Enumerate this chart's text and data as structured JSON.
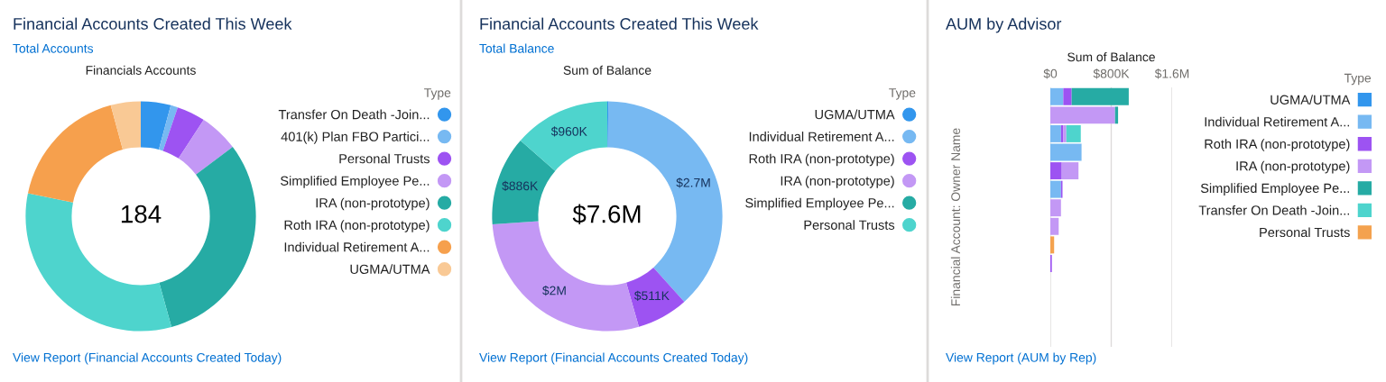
{
  "chart_data": [
    {
      "type": "donut",
      "title": "Financial Accounts Created This Week",
      "subtitle": "Total Accounts",
      "legend_title": "Type",
      "legend": "right",
      "annotations": [
        "Financials Accounts",
        "184",
        "View Report (Financial Accounts Created Today)"
      ],
      "categories": [
        "Transfer On Death -Join...",
        "401(k) Plan FBO Partici...",
        "Personal Trusts",
        "Simplified Employee Pe...",
        "IRA (non-prototype)",
        "Roth IRA (non-prototype)",
        "Individual Retirement A...",
        "UGMA/UTMA"
      ],
      "values": [
        4.2,
        1.0,
        4.0,
        5.5,
        31.0,
        32.5,
        17.6,
        4.2
      ],
      "colors": [
        "#3296ed",
        "#77b9f2",
        "#9d53f2",
        "#c398f5",
        "#26aba4",
        "#4ed4cd",
        "#f6a04d",
        "#f9c995"
      ]
    },
    {
      "type": "donut",
      "title": "Financial Accounts Created This Week",
      "subtitle": "Total Balance",
      "legend_title": "Type",
      "legend": "right",
      "annotations": [
        "Sum of Balance",
        "$7.6M",
        "View Report (Financial Accounts Created Today)"
      ],
      "categories": [
        "UGMA/UTMA",
        "Individual Retirement A...",
        "Roth IRA (non-prototype)",
        "IRA (non-prototype)",
        "Simplified Employee Pe...",
        "Personal Trusts"
      ],
      "values": [
        10000,
        2700000,
        511000,
        2000000,
        886000,
        960000
      ],
      "value_labels": [
        null,
        "$2.7M",
        "$511K",
        "$2M",
        "$886K",
        "$960K"
      ],
      "colors": [
        "#3296ed",
        "#77b9f2",
        "#9d53f2",
        "#c398f5",
        "#26aba4",
        "#4ed4cd"
      ]
    },
    {
      "type": "bar",
      "orientation": "horizontal",
      "stacked": true,
      "title": "AUM by Advisor",
      "xlabel": "Sum of Balance",
      "ylabel": "Financial Account: Owner Name",
      "legend_title": "Type",
      "legend": "right",
      "grid": "x",
      "tick_labels": "x",
      "annotations": [
        "View Report (AUM by Rep)"
      ],
      "categories": [
        null,
        null,
        null,
        null,
        null,
        null,
        null,
        null,
        null,
        null,
        null,
        null,
        null,
        null
      ],
      "xlim": [
        0,
        1600000
      ],
      "xticks": [
        {
          "value": 0,
          "label": "$0"
        },
        {
          "value": 800000,
          "label": "$800K"
        },
        {
          "value": 1600000,
          "label": "$1.6M"
        }
      ],
      "series": [
        {
          "name": "UGMA/UTMA",
          "color": "#3296ed",
          "values": [
            0,
            0,
            0,
            0,
            0,
            0,
            0,
            0,
            0,
            0,
            0,
            0,
            0,
            0
          ]
        },
        {
          "name": "Individual Retirement A...",
          "color": "#77b9f2",
          "values": [
            170000,
            0,
            140000,
            410000,
            0,
            140000,
            0,
            0,
            0,
            0,
            0,
            0,
            0,
            0
          ]
        },
        {
          "name": "Roth IRA (non-prototype)",
          "color": "#9d53f2",
          "values": [
            110000,
            0,
            30000,
            0,
            150000,
            20000,
            0,
            0,
            0,
            20000,
            0,
            0,
            0,
            0
          ]
        },
        {
          "name": "IRA (non-prototype)",
          "color": "#c398f5",
          "values": [
            0,
            850000,
            40000,
            0,
            220000,
            0,
            140000,
            110000,
            0,
            0,
            0,
            0,
            0,
            0
          ]
        },
        {
          "name": "Simplified Employee Pe...",
          "color": "#26aba4",
          "values": [
            750000,
            40000,
            0,
            0,
            0,
            0,
            0,
            0,
            0,
            0,
            0,
            0,
            0,
            0
          ]
        },
        {
          "name": "Transfer On Death -Join...",
          "color": "#4ed4cd",
          "values": [
            0,
            0,
            190000,
            0,
            0,
            0,
            0,
            0,
            0,
            0,
            0,
            0,
            0,
            0
          ]
        },
        {
          "name": "Personal Trusts",
          "color": "#f4a24f",
          "values": [
            0,
            0,
            0,
            0,
            0,
            0,
            0,
            0,
            50000,
            0,
            0,
            0,
            0,
            0
          ]
        }
      ]
    }
  ]
}
